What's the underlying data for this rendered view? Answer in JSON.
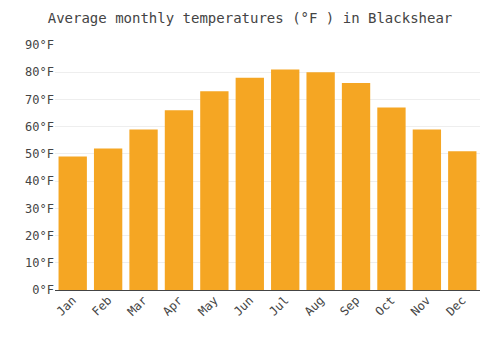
{
  "chart_data": {
    "type": "bar",
    "title": "Average monthly temperatures (°F ) in Blackshear",
    "categories": [
      "Jan",
      "Feb",
      "Mar",
      "Apr",
      "May",
      "Jun",
      "Jul",
      "Aug",
      "Sep",
      "Oct",
      "Nov",
      "Dec"
    ],
    "values": [
      49,
      52,
      59,
      66,
      73,
      78,
      81,
      80,
      76,
      67,
      59,
      51
    ],
    "color": "#F5A623",
    "ylim": [
      0,
      90
    ],
    "yticks": [
      {
        "value": 0,
        "label": "0°F"
      },
      {
        "value": 10,
        "label": "10°F"
      },
      {
        "value": 20,
        "label": "20°F"
      },
      {
        "value": 30,
        "label": "30°F"
      },
      {
        "value": 40,
        "label": "40°F"
      },
      {
        "value": 50,
        "label": "50°F"
      },
      {
        "value": 60,
        "label": "60°F"
      },
      {
        "value": 70,
        "label": "70°F"
      },
      {
        "value": 80,
        "label": "80°F"
      },
      {
        "value": 90,
        "label": "90°F"
      }
    ],
    "grid": true
  }
}
